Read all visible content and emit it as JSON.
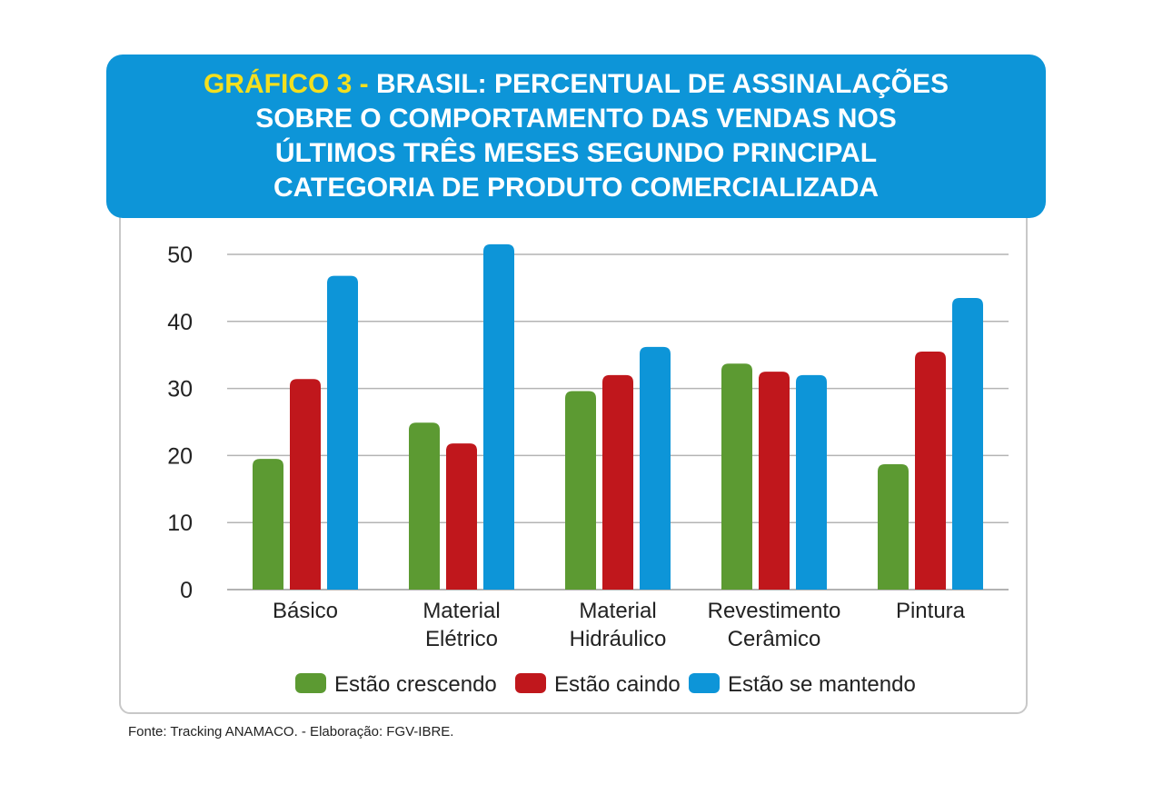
{
  "title": {
    "prefix": "GRÁFICO 3 -",
    "lines": [
      "BRASIL: PERCENTUAL DE ASSINALAÇÕES",
      "SOBRE O COMPORTAMENTO DAS VENDAS NOS",
      "ÚLTIMOS TRÊS MESES SEGUNDO PRINCIPAL",
      "CATEGORIA DE PRODUTO COMERCIALIZADA"
    ]
  },
  "colors": {
    "header": "#0d95d8",
    "prefix": "#f4df1e"
  },
  "chart_data": {
    "type": "bar",
    "title": "GRÁFICO 3 - BRASIL: PERCENTUAL DE ASSINALAÇÕES SOBRE O COMPORTAMENTO DAS VENDAS NOS ÚLTIMOS TRÊS MESES SEGUNDO PRINCIPAL CATEGORIA DE PRODUTO COMERCIALIZADA",
    "categories": [
      [
        "Básico"
      ],
      [
        "Material",
        "Elétrico"
      ],
      [
        "Material",
        "Hidráulico"
      ],
      [
        "Revestimento",
        "Cerâmico"
      ],
      [
        "Pintura"
      ]
    ],
    "series": [
      {
        "name": "Estão crescendo",
        "color": "#5c9a32",
        "values": [
          19.5,
          24.9,
          29.6,
          33.7,
          18.7
        ]
      },
      {
        "name": "Estão caindo",
        "color": "#c0171c",
        "values": [
          31.4,
          21.8,
          32.0,
          32.5,
          35.5
        ]
      },
      {
        "name": "Estão se mantendo",
        "color": "#0d95d8",
        "values": [
          46.8,
          51.5,
          36.2,
          32.0,
          43.5
        ]
      }
    ],
    "yticks": [
      0,
      10,
      20,
      30,
      40,
      50
    ],
    "ylim": [
      0,
      50
    ],
    "grid": true,
    "legend": "bottom"
  },
  "source": "Fonte: Tracking ANAMACO. - Elaboração: FGV-IBRE."
}
